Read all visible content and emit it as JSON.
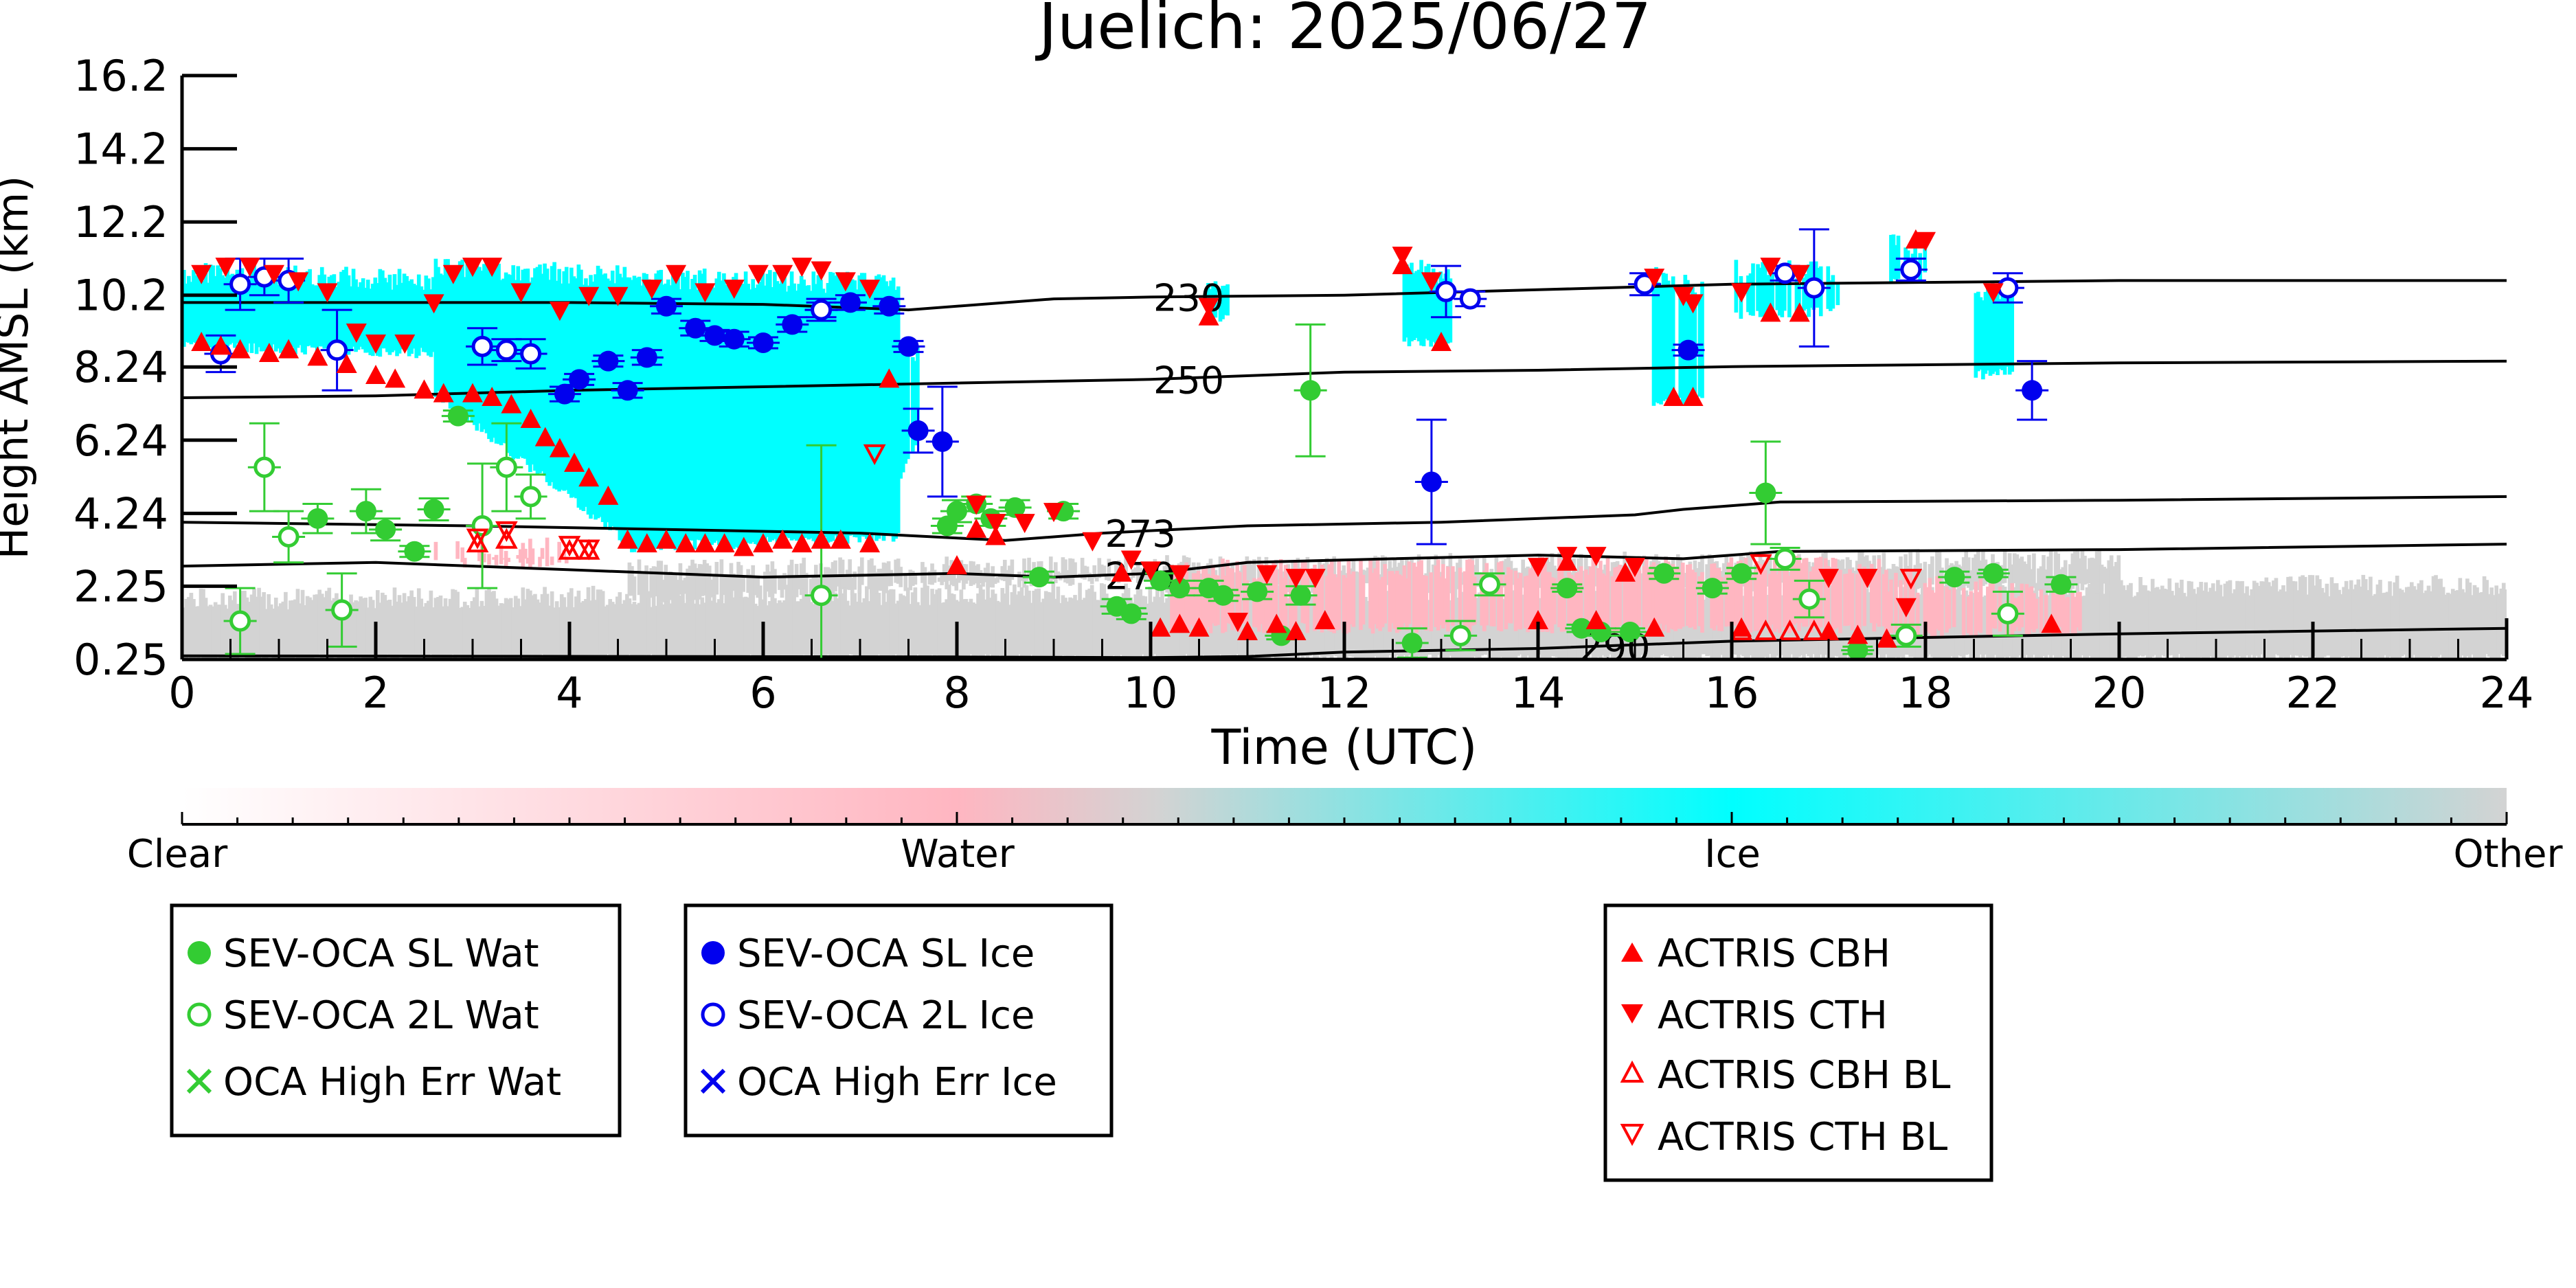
{
  "chart_data": {
    "type": "scatter",
    "title": "Juelich: 2025/06/27",
    "xlabel": "Time (UTC)",
    "ylabel": "Height AMSL (km)",
    "xlim": [
      0,
      24
    ],
    "ylim": [
      0.25,
      16.2
    ],
    "x_ticks": [
      0,
      2,
      4,
      6,
      8,
      10,
      12,
      14,
      16,
      18,
      20,
      22,
      24
    ],
    "y_ticks": [
      0.25,
      2.25,
      4.24,
      6.24,
      8.24,
      10.2,
      12.2,
      14.2,
      16.2
    ],
    "y_tick_labels": [
      "0.25",
      "2.25",
      "4.24",
      "6.24",
      "8.24",
      "10.2",
      "12.2",
      "14.2",
      "16.2"
    ],
    "colors": {
      "clear": "#ffffff",
      "water": "#ffb6c1",
      "ice": "#00ffff",
      "other": "#d3d3d3",
      "sev_water": "#33cc33",
      "sev_ice": "#0000ee",
      "actris": "#ff0000",
      "isotherm": "#000000"
    },
    "colorbar": {
      "labels": [
        "Clear",
        "Water",
        "Ice",
        "Other"
      ]
    },
    "isotherms": [
      {
        "label": "230",
        "label_x": 10.0,
        "points": [
          [
            0,
            10.0
          ],
          [
            4,
            10.0
          ],
          [
            6,
            9.95
          ],
          [
            7.5,
            9.8
          ],
          [
            9,
            10.1
          ],
          [
            10,
            10.15
          ],
          [
            12,
            10.2
          ],
          [
            14,
            10.35
          ],
          [
            16,
            10.5
          ],
          [
            18,
            10.55
          ],
          [
            20,
            10.6
          ],
          [
            24,
            10.6
          ]
        ]
      },
      {
        "label": "250",
        "label_x": 10.0,
        "points": [
          [
            0,
            7.4
          ],
          [
            2,
            7.45
          ],
          [
            4,
            7.6
          ],
          [
            6,
            7.7
          ],
          [
            8,
            7.8
          ],
          [
            10,
            7.9
          ],
          [
            12,
            8.1
          ],
          [
            14,
            8.15
          ],
          [
            16,
            8.25
          ],
          [
            18,
            8.3
          ],
          [
            20,
            8.35
          ],
          [
            24,
            8.4
          ]
        ]
      },
      {
        "label": "273",
        "label_x": 9.5,
        "points": [
          [
            0,
            4.0
          ],
          [
            3,
            3.9
          ],
          [
            5,
            3.8
          ],
          [
            7,
            3.7
          ],
          [
            8.5,
            3.5
          ],
          [
            9.5,
            3.7
          ],
          [
            11,
            3.9
          ],
          [
            13,
            4.0
          ],
          [
            15,
            4.2
          ],
          [
            15.5,
            4.35
          ],
          [
            16.5,
            4.55
          ],
          [
            20,
            4.6
          ],
          [
            24,
            4.7
          ]
        ]
      },
      {
        "label": "279",
        "label_x": 9.5,
        "points": [
          [
            0,
            2.8
          ],
          [
            2,
            2.9
          ],
          [
            4,
            2.7
          ],
          [
            6,
            2.5
          ],
          [
            8,
            2.6
          ],
          [
            9,
            2.5
          ],
          [
            10,
            2.6
          ],
          [
            11,
            2.9
          ],
          [
            12.5,
            3.0
          ],
          [
            14,
            3.1
          ],
          [
            15.5,
            3.0
          ],
          [
            16.5,
            3.2
          ],
          [
            20,
            3.25
          ],
          [
            24,
            3.4
          ]
        ]
      },
      {
        "label": "290",
        "label_x": 14.4,
        "points": [
          [
            0,
            0.35
          ],
          [
            8,
            0.32
          ],
          [
            10,
            0.3
          ],
          [
            11,
            0.33
          ],
          [
            12,
            0.45
          ],
          [
            14,
            0.55
          ],
          [
            16,
            0.75
          ],
          [
            18,
            0.85
          ],
          [
            20,
            0.95
          ],
          [
            24,
            1.1
          ]
        ]
      }
    ],
    "series": [
      {
        "name": "SEV-OCA SL Wat",
        "marker": "circle-filled",
        "x": [
          1.4,
          1.9,
          2.1,
          2.4,
          2.6,
          2.85,
          7.9,
          8.0,
          8.2,
          8.35,
          8.6,
          8.85,
          9.1,
          9.65,
          9.8,
          10.1,
          10.3,
          10.6,
          10.75,
          11.1,
          11.35,
          11.55,
          11.65,
          12.7,
          14.3,
          14.45,
          14.65,
          14.95,
          15.3,
          15.8,
          16.1,
          16.35,
          17.3,
          18.3,
          18.7,
          19.4
        ],
        "y": [
          4.1,
          4.3,
          3.8,
          3.2,
          4.35,
          6.9,
          3.9,
          4.3,
          4.5,
          4.1,
          4.4,
          2.5,
          4.3,
          1.7,
          1.5,
          2.4,
          2.2,
          2.2,
          2.0,
          2.1,
          0.9,
          2.0,
          7.6,
          0.7,
          2.2,
          1.1,
          1.0,
          1.0,
          2.6,
          2.2,
          2.6,
          4.8,
          0.5,
          2.5,
          2.6,
          2.3
        ],
        "yerr": [
          0.4,
          0.6,
          0.3,
          0.15,
          0.3,
          0.15,
          0.2,
          0.3,
          0.2,
          0.2,
          0.2,
          0.15,
          0.2,
          0.2,
          0.15,
          0.2,
          0.2,
          0.2,
          0.15,
          0.2,
          0.1,
          0.25,
          1.8,
          0.4,
          0.1,
          0.1,
          0.1,
          0.1,
          0.15,
          0.15,
          0.15,
          1.4,
          0.1,
          0.15,
          0.1,
          0.2
        ]
      },
      {
        "name": "SEV-OCA 2L Wat",
        "marker": "circle-open",
        "x": [
          0.6,
          0.85,
          1.1,
          1.65,
          3.1,
          3.35,
          3.6,
          6.6,
          13.2,
          13.5,
          16.55,
          16.8,
          17.8,
          18.85
        ],
        "y": [
          1.3,
          5.5,
          3.6,
          1.6,
          3.9,
          5.5,
          4.7,
          2.0,
          0.9,
          2.3,
          3.0,
          1.9,
          0.9,
          1.5
        ],
        "yerr": [
          0.9,
          1.2,
          0.7,
          1.0,
          1.7,
          1.2,
          0.6,
          4.1,
          0.4,
          0.3,
          0.3,
          0.5,
          0.3,
          0.6
        ]
      },
      {
        "name": "OCA High Err Wat",
        "marker": "x",
        "x": [],
        "y": []
      },
      {
        "name": "SEV-OCA SL Ice",
        "marker": "circle-filled",
        "x": [
          3.95,
          4.1,
          4.4,
          4.6,
          4.8,
          5.0,
          5.3,
          5.5,
          5.7,
          6.0,
          6.3,
          6.6,
          6.9,
          7.3,
          7.5,
          7.6,
          7.85,
          12.9,
          15.55,
          19.1
        ],
        "y": [
          7.5,
          7.9,
          8.4,
          7.6,
          8.5,
          9.9,
          9.3,
          9.1,
          9.0,
          8.9,
          9.4,
          9.8,
          10.0,
          9.9,
          8.8,
          6.5,
          6.2,
          5.1,
          8.7,
          7.6
        ],
        "yerr": [
          0.2,
          0.15,
          0.15,
          0.2,
          0.2,
          0.2,
          0.2,
          0.15,
          0.2,
          0.15,
          0.2,
          0.3,
          0.2,
          0.2,
          0.15,
          0.6,
          1.5,
          1.7,
          0.15,
          0.8
        ]
      },
      {
        "name": "SEV-OCA 2L Ice",
        "marker": "circle-open",
        "x": [
          0.4,
          0.6,
          0.85,
          1.1,
          1.6,
          3.1,
          3.35,
          3.6,
          6.6,
          13.05,
          13.3,
          15.1,
          16.55,
          16.85,
          17.85,
          18.85
        ],
        "y": [
          8.6,
          10.5,
          10.7,
          10.6,
          8.7,
          8.8,
          8.7,
          8.6,
          9.8,
          10.3,
          10.1,
          10.5,
          10.8,
          10.4,
          10.9,
          10.4
        ],
        "yerr": [
          0.5,
          0.7,
          0.5,
          0.6,
          1.1,
          0.5,
          0.3,
          0.4,
          0.2,
          0.7,
          0.2,
          0.3,
          0.2,
          1.6,
          0.3,
          0.4
        ]
      },
      {
        "name": "OCA High Err Ice",
        "marker": "x",
        "x": [],
        "y": []
      },
      {
        "name": "ACTRIS CBH",
        "marker": "triangle-up-filled",
        "x": [
          0.2,
          0.4,
          0.6,
          0.9,
          1.1,
          1.4,
          1.7,
          2.0,
          2.2,
          2.5,
          2.7,
          3.0,
          3.2,
          3.4,
          3.6,
          3.75,
          3.9,
          4.05,
          4.2,
          4.4,
          4.6,
          4.8,
          5.0,
          5.2,
          5.4,
          5.6,
          5.8,
          6.0,
          6.2,
          6.4,
          6.6,
          6.8,
          7.1,
          7.3,
          8.0,
          8.2,
          8.4,
          9.7,
          10.1,
          10.3,
          10.5,
          10.6,
          11.0,
          11.3,
          11.5,
          11.8,
          12.6,
          13.0,
          14.0,
          14.3,
          14.6,
          14.9,
          15.2,
          15.4,
          15.6,
          16.1,
          16.4,
          16.7,
          17.0,
          17.3,
          17.6,
          17.9,
          19.3
        ],
        "y": [
          8.9,
          8.8,
          8.7,
          8.6,
          8.7,
          8.5,
          8.3,
          8.0,
          7.9,
          7.6,
          7.5,
          7.5,
          7.4,
          7.2,
          6.8,
          6.3,
          6.0,
          5.6,
          5.2,
          4.7,
          3.5,
          3.4,
          3.5,
          3.4,
          3.4,
          3.4,
          3.3,
          3.4,
          3.5,
          3.4,
          3.5,
          3.5,
          3.4,
          7.9,
          2.8,
          3.8,
          3.6,
          2.6,
          1.1,
          1.2,
          1.1,
          9.6,
          1.0,
          1.2,
          1.0,
          1.3,
          11.0,
          8.9,
          1.3,
          2.9,
          1.3,
          2.6,
          1.1,
          7.4,
          7.4,
          1.1,
          9.7,
          9.7,
          1.0,
          0.9,
          0.8,
          11.7,
          1.2
        ]
      },
      {
        "name": "ACTRIS CTH",
        "marker": "triangle-down-filled",
        "x": [
          0.2,
          0.45,
          0.7,
          0.95,
          1.2,
          1.5,
          1.8,
          2.0,
          2.3,
          2.6,
          2.8,
          3.0,
          3.2,
          3.5,
          3.9,
          4.2,
          4.5,
          4.85,
          5.1,
          5.4,
          5.7,
          5.95,
          6.2,
          6.4,
          6.6,
          6.85,
          7.1,
          8.2,
          8.4,
          8.7,
          9.0,
          9.4,
          9.8,
          10.0,
          10.3,
          10.6,
          10.9,
          11.2,
          11.5,
          11.7,
          12.6,
          12.9,
          14.0,
          14.3,
          14.6,
          15.0,
          15.2,
          15.5,
          15.6,
          16.1,
          16.4,
          16.7,
          17.0,
          17.4,
          17.8,
          18.0,
          18.7
        ],
        "y": [
          10.8,
          11.0,
          11.0,
          10.8,
          10.6,
          10.3,
          9.2,
          8.9,
          8.9,
          10.0,
          10.8,
          11.0,
          11.0,
          10.3,
          9.8,
          10.2,
          10.2,
          10.4,
          10.8,
          10.3,
          10.4,
          10.8,
          10.8,
          11.0,
          10.9,
          10.6,
          10.4,
          4.5,
          4.0,
          4.0,
          4.3,
          3.5,
          3.0,
          2.7,
          2.6,
          9.9,
          1.3,
          2.6,
          2.5,
          2.5,
          11.3,
          10.6,
          2.8,
          3.1,
          3.1,
          2.8,
          10.7,
          10.2,
          10.0,
          10.3,
          11.0,
          10.8,
          2.5,
          2.5,
          1.7,
          11.7,
          10.3
        ]
      },
      {
        "name": "ACTRIS CBH BL",
        "marker": "triangle-up-open",
        "x": [
          3.05,
          3.35,
          4.0,
          4.2,
          16.1,
          16.35,
          16.6,
          16.85
        ],
        "y": [
          3.4,
          3.5,
          3.2,
          3.2,
          1.0,
          1.0,
          1.0,
          1.0
        ]
      },
      {
        "name": "ACTRIS CTH BL",
        "marker": "triangle-down-open",
        "x": [
          3.05,
          3.35,
          4.0,
          4.2,
          7.15,
          16.3,
          17.85
        ],
        "y": [
          3.6,
          3.8,
          3.4,
          3.3,
          5.9,
          2.9,
          2.5
        ]
      }
    ],
    "legend": {
      "placement": "bottom",
      "groups": [
        [
          "SEV-OCA SL Wat",
          "SEV-OCA 2L Wat",
          "OCA High Err Wat"
        ],
        [
          "SEV-OCA SL Ice",
          "SEV-OCA 2L Ice",
          "OCA High Err Ice"
        ],
        [
          "ACTRIS CBH",
          "ACTRIS CTH",
          "ACTRIS CBH BL",
          "ACTRIS CTH BL"
        ]
      ]
    }
  }
}
